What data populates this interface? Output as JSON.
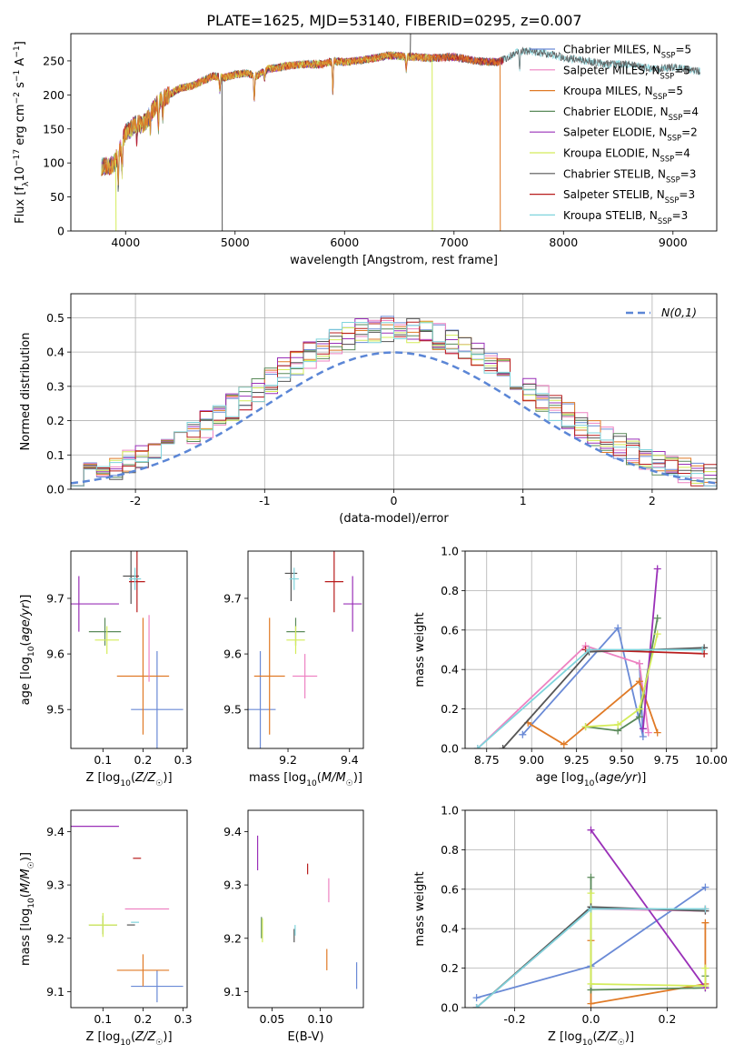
{
  "figure": {
    "title": "PLATE=1625, MJD=53140, FIBERID=0295, z=0.007"
  },
  "series_styles": [
    {
      "name": "Chabrier MILES",
      "nssp": "5",
      "color": "#6a8ad6"
    },
    {
      "name": "Salpeter MILES",
      "nssp": "5",
      "color": "#ee82c2"
    },
    {
      "name": "Kroupa MILES",
      "nssp": "5",
      "color": "#e07a26"
    },
    {
      "name": "Chabrier ELODIE",
      "nssp": "4",
      "color": "#5a8a5a"
    },
    {
      "name": "Salpeter ELODIE",
      "nssp": "2",
      "color": "#9a30b8"
    },
    {
      "name": "Kroupa ELODIE",
      "nssp": "4",
      "color": "#d4ec5a"
    },
    {
      "name": "Chabrier STELIB",
      "nssp": "3",
      "color": "#555555"
    },
    {
      "name": "Salpeter STELIB",
      "nssp": "3",
      "color": "#b81c1c"
    },
    {
      "name": "Kroupa STELIB",
      "nssp": "3",
      "color": "#7fd4dc"
    }
  ],
  "chart_data": [
    {
      "id": "spectrum",
      "type": "line",
      "xlabel": "wavelength [Angstrom, rest frame]",
      "ylabel": "Flux [f_λ 10^-17 erg cm^-2 s^-1 A^-1]",
      "xlim": [
        3500,
        9400
      ],
      "ylim": [
        0,
        290
      ],
      "xticks": [
        4000,
        5000,
        6000,
        7000,
        8000,
        9000
      ],
      "yticks": [
        0,
        50,
        100,
        150,
        200,
        250
      ],
      "grid": false,
      "legend": "top-right",
      "continuum": {
        "x": [
          3780,
          3850,
          3900,
          3950,
          4000,
          4050,
          4100,
          4150,
          4200,
          4300,
          4400,
          4500,
          4600,
          4700,
          4800,
          4900,
          5000,
          5100,
          5200,
          5300,
          5400,
          5500,
          5600,
          5700,
          5800,
          5900,
          6000,
          6200,
          6400,
          6600,
          6800,
          7000,
          7200,
          7400,
          7500,
          7600,
          7800,
          8000,
          8200,
          8400,
          8600,
          8800,
          9000,
          9200
        ],
        "y": [
          95,
          95,
          100,
          120,
          145,
          150,
          160,
          155,
          165,
          190,
          200,
          210,
          213,
          220,
          228,
          225,
          230,
          232,
          228,
          238,
          240,
          243,
          245,
          245,
          245,
          250,
          248,
          252,
          258,
          256,
          254,
          256,
          250,
          248,
          255,
          265,
          262,
          255,
          250,
          245,
          245,
          238,
          240,
          235
        ]
      },
      "absorption_lines": [
        {
          "x": 3933,
          "depth": 45
        },
        {
          "x": 3968,
          "depth": 40
        },
        {
          "x": 4102,
          "depth": 25
        },
        {
          "x": 4226,
          "depth": 20
        },
        {
          "x": 4300,
          "depth": 35
        },
        {
          "x": 4340,
          "depth": 25
        },
        {
          "x": 4861,
          "depth": 20
        },
        {
          "x": 5175,
          "depth": 40
        },
        {
          "x": 5270,
          "depth": 12
        },
        {
          "x": 5893,
          "depth": 45
        },
        {
          "x": 6563,
          "depth": 20
        },
        {
          "x": 7600,
          "depth": 25
        }
      ],
      "glitches": [
        {
          "x": 3910,
          "y": 0,
          "series": 5
        },
        {
          "x": 4880,
          "y": 0,
          "series": 6
        },
        {
          "x": 6800,
          "y": 0,
          "series": 5
        },
        {
          "x": 7420,
          "y": 0,
          "series": 2
        },
        {
          "x": 6600,
          "y": 290,
          "series": 6
        }
      ],
      "end_wavelength": [
        7450,
        7450,
        7420,
        7450,
        7450,
        6800,
        9250,
        7450,
        9250
      ]
    },
    {
      "id": "residuals",
      "type": "histogram",
      "xlabel": "(data-model)/error",
      "ylabel": "Normed distribution",
      "xlim": [
        -2.5,
        2.5
      ],
      "ylim": [
        0,
        0.57
      ],
      "xticks": [
        -2,
        -1,
        0,
        1,
        2
      ],
      "yticks": [
        0.0,
        0.1,
        0.2,
        0.3,
        0.4,
        0.5
      ],
      "grid": true,
      "legend": "top-right",
      "reference_label": "N(0,1)",
      "reference_color": "#5b86d6",
      "bin_width": 0.1
    },
    {
      "id": "age-vs-Z",
      "type": "errorbar",
      "xlabel": "Z [log10(Z/Z☉)]",
      "ylabel": "age [log10(age/yr)]",
      "xlim": [
        0.02,
        0.31
      ],
      "ylim": [
        9.43,
        9.785
      ],
      "xticks": [
        0.1,
        0.2,
        0.3
      ],
      "yticks": [
        9.5,
        9.6,
        9.7
      ],
      "grid": false,
      "points": [
        {
          "s": 0,
          "x": 0.235,
          "y": 9.5,
          "xe": 0.065,
          "ye": 0.21
        },
        {
          "s": 2,
          "x": 0.2,
          "y": 9.56,
          "xe": 0.065,
          "ye": 0.21
        },
        {
          "s": 1,
          "x": 0.215,
          "y": 9.61,
          "xe": 0.0,
          "ye": 0.12
        },
        {
          "s": 3,
          "x": 0.105,
          "y": 9.64,
          "xe": 0.04,
          "ye": 0.05
        },
        {
          "s": 5,
          "x": 0.11,
          "y": 9.625,
          "xe": 0.03,
          "ye": 0.05
        },
        {
          "s": 4,
          "x": 0.04,
          "y": 9.69,
          "xe": 0.1,
          "ye": 0.1
        },
        {
          "s": 6,
          "x": 0.17,
          "y": 9.74,
          "xe": 0.02,
          "ye": 0.1
        },
        {
          "s": 7,
          "x": 0.185,
          "y": 9.73,
          "xe": 0.02,
          "ye": 0.11
        },
        {
          "s": 8,
          "x": 0.18,
          "y": 9.735,
          "xe": 0.015,
          "ye": 0.04
        }
      ]
    },
    {
      "id": "age-vs-mass",
      "type": "errorbar",
      "xlabel": "mass [log10(M/M☉)]",
      "ylabel": "",
      "xlim": [
        9.07,
        9.445
      ],
      "ylim": [
        9.43,
        9.785
      ],
      "xticks": [
        9.2,
        9.4
      ],
      "yticks": [
        9.5,
        9.6,
        9.7
      ],
      "grid": false,
      "points": [
        {
          "s": 0,
          "x": 9.11,
          "y": 9.5,
          "xe": 0.05,
          "ye": 0.21
        },
        {
          "s": 2,
          "x": 9.14,
          "y": 9.56,
          "xe": 0.05,
          "ye": 0.21
        },
        {
          "s": 1,
          "x": 9.255,
          "y": 9.56,
          "xe": 0.04,
          "ye": 0.08
        },
        {
          "s": 3,
          "x": 9.225,
          "y": 9.64,
          "xe": 0.03,
          "ye": 0.05
        },
        {
          "s": 5,
          "x": 9.225,
          "y": 9.625,
          "xe": 0.03,
          "ye": 0.05
        },
        {
          "s": 4,
          "x": 9.41,
          "y": 9.69,
          "xe": 0.03,
          "ye": 0.1
        },
        {
          "s": 6,
          "x": 9.21,
          "y": 9.745,
          "xe": 0.02,
          "ye": 0.1
        },
        {
          "s": 7,
          "x": 9.35,
          "y": 9.73,
          "xe": 0.03,
          "ye": 0.11
        },
        {
          "s": 8,
          "x": 9.22,
          "y": 9.735,
          "xe": 0.015,
          "ye": 0.04
        }
      ]
    },
    {
      "id": "weight-vs-age",
      "type": "line",
      "xlabel": "age [log10(age/yr)]",
      "ylabel": "mass weight",
      "xlim": [
        8.63,
        10.03
      ],
      "ylim": [
        0,
        1
      ],
      "xticks": [
        8.75,
        9.0,
        9.25,
        9.5,
        9.75,
        10.0
      ],
      "yticks": [
        0.0,
        0.2,
        0.4,
        0.6,
        0.8,
        1.0
      ],
      "grid": true,
      "series": [
        {
          "s": 0,
          "x": [
            8.95,
            9.48,
            9.62,
            9.6
          ],
          "y": [
            0.07,
            0.61,
            0.06,
            0.43
          ]
        },
        {
          "s": 1,
          "x": [
            8.7,
            9.3,
            9.6,
            9.65
          ],
          "y": [
            0.0,
            0.52,
            0.43,
            0.08
          ]
        },
        {
          "s": 2,
          "x": [
            8.98,
            9.18,
            9.6,
            9.7
          ],
          "y": [
            0.13,
            0.02,
            0.34,
            0.08
          ]
        },
        {
          "s": 3,
          "x": [
            9.3,
            9.48,
            9.6,
            9.7
          ],
          "y": [
            0.11,
            0.09,
            0.16,
            0.66
          ]
        },
        {
          "s": 4,
          "x": [
            9.62,
            9.7
          ],
          "y": [
            0.1,
            0.91
          ]
        },
        {
          "s": 5,
          "x": [
            9.3,
            9.48,
            9.6,
            9.7
          ],
          "y": [
            0.11,
            0.12,
            0.2,
            0.58
          ]
        },
        {
          "s": 6,
          "x": [
            8.84,
            9.32,
            9.96
          ],
          "y": [
            0.0,
            0.49,
            0.51
          ]
        },
        {
          "s": 7,
          "x": [
            9.3,
            9.96
          ],
          "y": [
            0.5,
            0.48
          ]
        },
        {
          "s": 8,
          "x": [
            8.7,
            9.32,
            9.95
          ],
          "y": [
            0.0,
            0.5,
            0.5
          ]
        }
      ]
    },
    {
      "id": "mass-vs-Z",
      "type": "errorbar",
      "xlabel": "Z [log10(Z/Z☉)]",
      "ylabel": "mass [log10(M/M☉)]",
      "xlim": [
        0.02,
        0.31
      ],
      "ylim": [
        9.07,
        9.44
      ],
      "xticks": [
        0.1,
        0.2,
        0.3
      ],
      "yticks": [
        9.1,
        9.2,
        9.3,
        9.4
      ],
      "grid": false,
      "points": [
        {
          "s": 0,
          "x": 0.235,
          "y": 9.11,
          "xe": 0.065,
          "ye": 0.06
        },
        {
          "s": 2,
          "x": 0.2,
          "y": 9.14,
          "xe": 0.065,
          "ye": 0.06
        },
        {
          "s": 1,
          "x": 0.21,
          "y": 9.255,
          "xe": 0.055,
          "ye": 0.0
        },
        {
          "s": 3,
          "x": 0.1,
          "y": 9.225,
          "xe": 0.035,
          "ye": 0.035
        },
        {
          "s": 5,
          "x": 0.1,
          "y": 9.225,
          "xe": 0.035,
          "ye": 0.045
        },
        {
          "s": 4,
          "x": 0.04,
          "y": 9.41,
          "xe": 0.1,
          "ye": 0.0
        },
        {
          "s": 6,
          "x": 0.17,
          "y": 9.225,
          "xe": 0.01,
          "ye": 0.0
        },
        {
          "s": 7,
          "x": 0.185,
          "y": 9.35,
          "xe": 0.01,
          "ye": 0.0
        },
        {
          "s": 8,
          "x": 0.18,
          "y": 9.23,
          "xe": 0.01,
          "ye": 0.0
        }
      ]
    },
    {
      "id": "mass-vs-ebv",
      "type": "errorbar",
      "xlabel": "E(B-V)",
      "ylabel": "",
      "xlim": [
        0.025,
        0.145
      ],
      "ylim": [
        9.07,
        9.44
      ],
      "xticks": [
        0.05,
        0.1
      ],
      "yticks": [
        9.1,
        9.2,
        9.3,
        9.4
      ],
      "grid": false,
      "points": [
        {
          "s": 0,
          "x": 0.138,
          "y": 9.13,
          "xe": 0.0,
          "ye": 0.05
        },
        {
          "s": 2,
          "x": 0.107,
          "y": 9.16,
          "xe": 0.0,
          "ye": 0.04
        },
        {
          "s": 1,
          "x": 0.109,
          "y": 9.29,
          "xe": 0.0,
          "ye": 0.045
        },
        {
          "s": 3,
          "x": 0.039,
          "y": 9.22,
          "xe": 0.0,
          "ye": 0.04
        },
        {
          "s": 5,
          "x": 0.04,
          "y": 9.215,
          "xe": 0.0,
          "ye": 0.045
        },
        {
          "s": 4,
          "x": 0.035,
          "y": 9.36,
          "xe": 0.0,
          "ye": 0.065
        },
        {
          "s": 6,
          "x": 0.073,
          "y": 9.205,
          "xe": 0.0,
          "ye": 0.025
        },
        {
          "s": 7,
          "x": 0.087,
          "y": 9.33,
          "xe": 0.0,
          "ye": 0.02
        },
        {
          "s": 8,
          "x": 0.074,
          "y": 9.215,
          "xe": 0.0,
          "ye": 0.02
        }
      ]
    },
    {
      "id": "weight-vs-Z",
      "type": "line",
      "xlabel": "Z [log10(Z/Z☉)]",
      "ylabel": "mass weight",
      "xlim": [
        -0.33,
        0.33
      ],
      "ylim": [
        0,
        1
      ],
      "xticks": [
        -0.2,
        0.0,
        0.2
      ],
      "yticks": [
        0.0,
        0.2,
        0.4,
        0.6,
        0.8,
        1.0
      ],
      "grid": true,
      "series": [
        {
          "s": 0,
          "x": [
            -0.3,
            0.0,
            0.3
          ],
          "y": [
            0.05,
            0.21,
            0.61
          ]
        },
        {
          "s": 1,
          "x": [
            -0.3,
            0.0,
            0.3
          ],
          "y": [
            0.0,
            0.5,
            0.49
          ]
        },
        {
          "s": 2,
          "x": [
            0.0,
            0.0,
            0.3,
            0.3
          ],
          "y": [
            0.34,
            0.02,
            0.12,
            0.43
          ]
        },
        {
          "s": 3,
          "x": [
            0.0,
            0.0,
            0.3,
            0.3
          ],
          "y": [
            0.66,
            0.09,
            0.1,
            0.16
          ]
        },
        {
          "s": 4,
          "x": [
            0.0,
            0.3
          ],
          "y": [
            0.9,
            0.1
          ]
        },
        {
          "s": 5,
          "x": [
            0.0,
            0.0,
            0.3,
            0.3
          ],
          "y": [
            0.58,
            0.12,
            0.11,
            0.2
          ]
        },
        {
          "s": 6,
          "x": [
            -0.3,
            0.0,
            0.3
          ],
          "y": [
            0.0,
            0.51,
            0.49
          ]
        },
        {
          "s": 7,
          "x": [
            0.3
          ],
          "y": [
            0.5
          ]
        },
        {
          "s": 8,
          "x": [
            -0.3,
            0.0,
            0.3
          ],
          "y": [
            0.0,
            0.5,
            0.5
          ]
        }
      ]
    }
  ]
}
